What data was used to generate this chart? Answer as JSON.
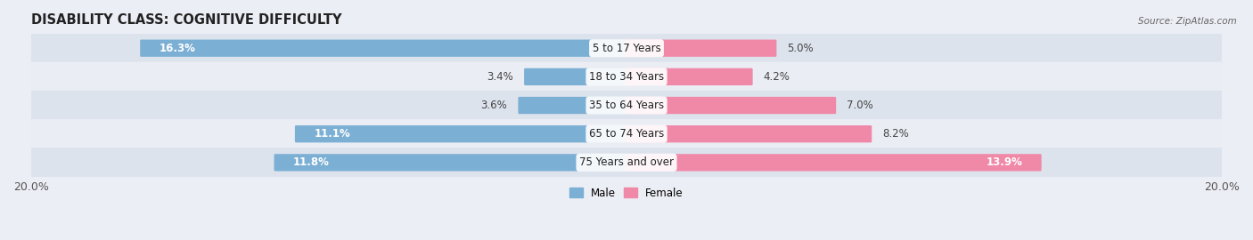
{
  "title": "DISABILITY CLASS: COGNITIVE DIFFICULTY",
  "source": "Source: ZipAtlas.com",
  "categories": [
    "5 to 17 Years",
    "18 to 34 Years",
    "35 to 64 Years",
    "65 to 74 Years",
    "75 Years and over"
  ],
  "male_values": [
    16.3,
    3.4,
    3.6,
    11.1,
    11.8
  ],
  "female_values": [
    5.0,
    4.2,
    7.0,
    8.2,
    13.9
  ],
  "male_color": "#7bafd4",
  "female_color": "#f088a8",
  "row_bg_color_odd": "#dde3ed",
  "row_bg_color_even": "#eaedf4",
  "fig_bg_color": "#eceef5",
  "xlim": 20.0,
  "bar_height": 0.52,
  "title_fontsize": 10.5,
  "label_fontsize": 8.5,
  "tick_fontsize": 9,
  "value_fontsize": 8.5
}
